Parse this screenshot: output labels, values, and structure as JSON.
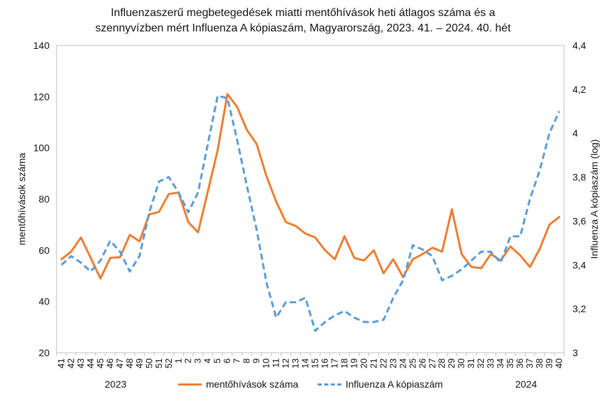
{
  "chart_data": {
    "type": "line",
    "title_line1": "Influenzaszerű megbetegedések miatti mentőhívások heti átlagos száma és a",
    "title_line2": "szennyvízben mért Influenza A kópiaszám, Magyarország, 2023. 41. – 2024. 40. hét",
    "ylabel": "mentőhívások száma",
    "y2label": "Influenza A kópiaszám (log)",
    "ylim": [
      20,
      140
    ],
    "y2lim": [
      3,
      4.4
    ],
    "yticks": [
      "20",
      "40",
      "60",
      "80",
      "100",
      "120",
      "140"
    ],
    "y2ticks": [
      "3",
      "3,2",
      "3,4",
      "3,6",
      "3,8",
      "4",
      "4,2",
      "4,4"
    ],
    "categories": [
      "41",
      "42",
      "43",
      "44",
      "45",
      "46",
      "47",
      "48",
      "49",
      "50",
      "51",
      "52",
      "1",
      "2",
      "3",
      "4",
      "5",
      "6",
      "7",
      "8",
      "9",
      "10",
      "11",
      "12",
      "13",
      "14",
      "15",
      "16",
      "17",
      "18",
      "19",
      "20",
      "21",
      "22",
      "23",
      "24",
      "25",
      "26",
      "27",
      "28",
      "29",
      "30",
      "31",
      "32",
      "33",
      "34",
      "35",
      "36",
      "37",
      "38",
      "39",
      "40"
    ],
    "year_left": "2023",
    "year_right": "2024",
    "series": [
      {
        "name": "mentőhívások száma",
        "axis": "left",
        "color": "#ed7d31",
        "dash": "solid",
        "values": [
          56.5,
          59.5,
          65,
          57,
          49,
          57,
          57.3,
          66,
          63.5,
          74,
          75,
          82,
          82.5,
          71,
          67,
          83,
          99,
          121,
          116,
          107,
          101.5,
          89,
          79,
          71,
          69.5,
          66.5,
          65,
          60,
          56.5,
          65.5,
          57,
          56,
          60,
          51,
          56.5,
          49.5,
          56.5,
          58.5,
          61,
          59.5,
          76,
          58.5,
          53.5,
          53,
          58.5,
          56,
          61.5,
          58,
          53.5,
          60.5,
          70,
          73
        ]
      },
      {
        "name": "Influenza A kópiaszám",
        "axis": "right",
        "color": "#5b9bd5",
        "dash": "dashed",
        "values": [
          3.4,
          3.44,
          3.41,
          3.37,
          3.42,
          3.51,
          3.46,
          3.37,
          3.44,
          3.64,
          3.78,
          3.8,
          3.73,
          3.64,
          3.73,
          3.95,
          4.17,
          4.16,
          3.97,
          3.76,
          3.56,
          3.32,
          3.16,
          3.23,
          3.23,
          3.25,
          3.1,
          3.14,
          3.17,
          3.19,
          3.16,
          3.14,
          3.14,
          3.15,
          3.25,
          3.33,
          3.49,
          3.47,
          3.44,
          3.33,
          3.35,
          3.38,
          3.42,
          3.46,
          3.46,
          3.41,
          3.53,
          3.53,
          3.7,
          3.83,
          4.0,
          4.1
        ]
      }
    ],
    "legend_position": "bottom-center"
  }
}
